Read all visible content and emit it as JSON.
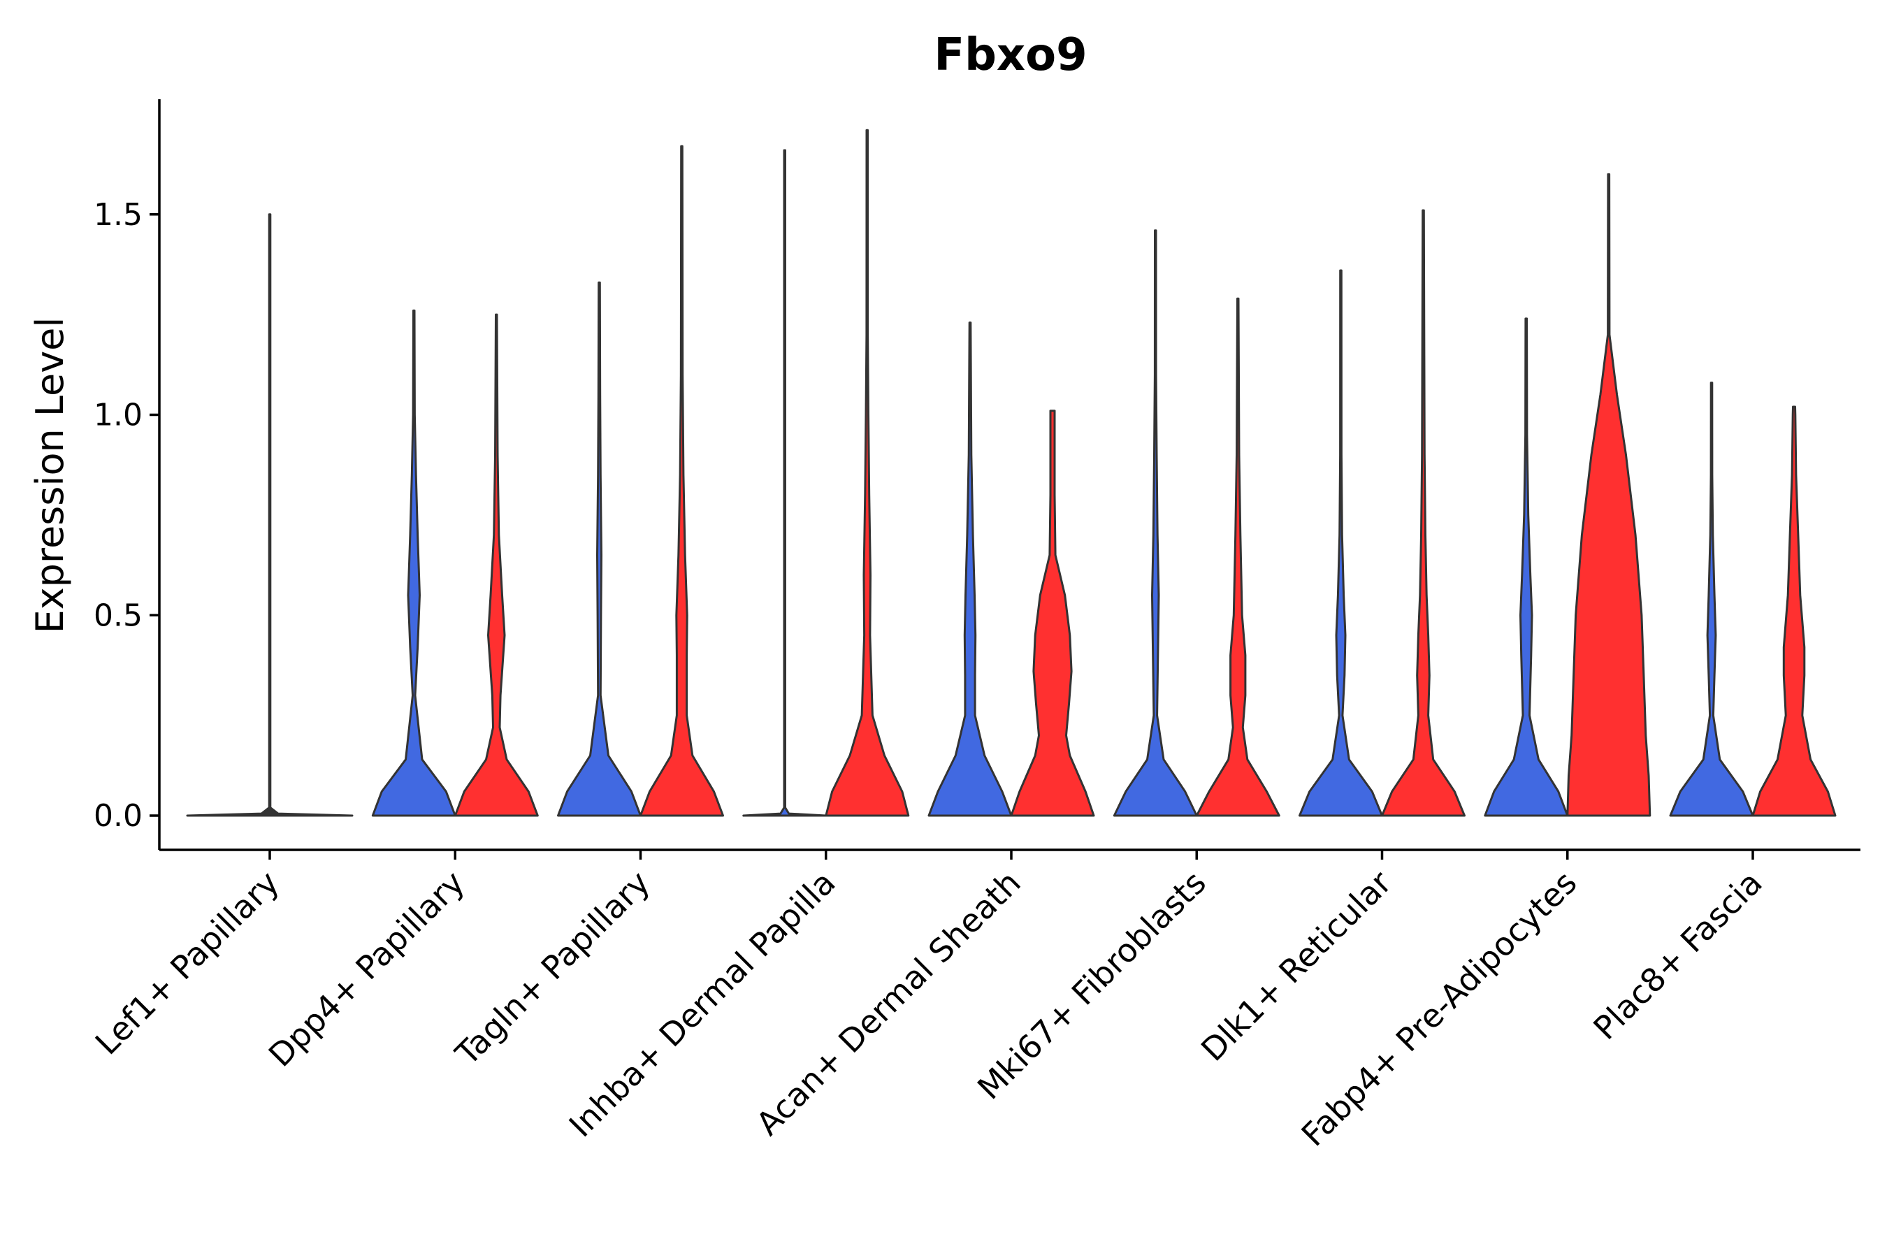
{
  "colors": {
    "blue": "#4169e1",
    "red": "#ff3030",
    "outline": "#333333",
    "axis": "#000000"
  },
  "chart_data": {
    "type": "violin",
    "title": "Fbxo9",
    "xlabel": "",
    "ylabel": "Expression Level",
    "ylim": [
      -0.08,
      1.8
    ],
    "yticks": [
      0.0,
      0.5,
      1.0,
      1.5
    ],
    "ytick_labels": [
      "0.0",
      "0.5",
      "1.0",
      "1.5"
    ],
    "grid": false,
    "split_by": [
      "blue group",
      "red group"
    ],
    "categories": [
      "Lef1+ Papillary",
      "Dpp4+ Papillary",
      "Tagln+ Papillary",
      "Inhba+ Dermal Papilla",
      "Acan+ Dermal Sheath",
      "Mki67+ Fibroblasts",
      "Dlk1+ Reticular",
      "Fabp4+ Pre-Adipocytes",
      "Plac8+ Fascia"
    ],
    "violins": [
      {
        "category": "Lef1+ Papillary",
        "group": "single",
        "color": "gray",
        "max": 1.5,
        "profile": [
          [
            0,
            1.0
          ],
          [
            0.005,
            0.1
          ],
          [
            0.02,
            0.006
          ],
          [
            1.5,
            0.006
          ]
        ]
      },
      {
        "category": "Dpp4+ Papillary",
        "group": "blue",
        "max": 1.26,
        "profile": [
          [
            0,
            1.0
          ],
          [
            0.06,
            0.78
          ],
          [
            0.14,
            0.2
          ],
          [
            0.3,
            0.03
          ],
          [
            0.42,
            0.09
          ],
          [
            0.55,
            0.14
          ],
          [
            0.7,
            0.09
          ],
          [
            0.85,
            0.05
          ],
          [
            1.0,
            0.02
          ],
          [
            1.26,
            0.01
          ]
        ]
      },
      {
        "category": "Dpp4+ Papillary",
        "group": "red",
        "max": 1.25,
        "profile": [
          [
            0,
            1.0
          ],
          [
            0.06,
            0.78
          ],
          [
            0.14,
            0.25
          ],
          [
            0.22,
            0.08
          ],
          [
            0.3,
            0.1
          ],
          [
            0.45,
            0.2
          ],
          [
            0.55,
            0.14
          ],
          [
            0.7,
            0.06
          ],
          [
            0.9,
            0.03
          ],
          [
            1.25,
            0.01
          ]
        ]
      },
      {
        "category": "Tagln+ Papillary",
        "group": "blue",
        "max": 1.33,
        "profile": [
          [
            0,
            1.0
          ],
          [
            0.06,
            0.78
          ],
          [
            0.15,
            0.22
          ],
          [
            0.3,
            0.03
          ],
          [
            0.5,
            0.04
          ],
          [
            0.65,
            0.05
          ],
          [
            0.85,
            0.03
          ],
          [
            1.05,
            0.02
          ],
          [
            1.33,
            0.01
          ]
        ]
      },
      {
        "category": "Tagln+ Papillary",
        "group": "red",
        "max": 1.67,
        "profile": [
          [
            0,
            1.0
          ],
          [
            0.06,
            0.78
          ],
          [
            0.15,
            0.26
          ],
          [
            0.25,
            0.12
          ],
          [
            0.4,
            0.12
          ],
          [
            0.5,
            0.13
          ],
          [
            0.65,
            0.08
          ],
          [
            0.85,
            0.04
          ],
          [
            1.1,
            0.02
          ],
          [
            1.67,
            0.01
          ]
        ]
      },
      {
        "category": "Inhba+ Dermal Papilla",
        "group": "blue",
        "max": 1.66,
        "profile": [
          [
            0,
            1.0
          ],
          [
            0.005,
            0.1
          ],
          [
            0.02,
            0.006
          ],
          [
            1.66,
            0.006
          ]
        ]
      },
      {
        "category": "Inhba+ Dermal Papilla",
        "group": "red",
        "max": 1.71,
        "profile": [
          [
            0,
            1.0
          ],
          [
            0.06,
            0.85
          ],
          [
            0.15,
            0.42
          ],
          [
            0.25,
            0.13
          ],
          [
            0.45,
            0.07
          ],
          [
            0.6,
            0.08
          ],
          [
            0.8,
            0.05
          ],
          [
            1.0,
            0.03
          ],
          [
            1.2,
            0.015
          ],
          [
            1.71,
            0.005
          ]
        ]
      },
      {
        "category": "Acan+ Dermal Sheath",
        "group": "blue",
        "max": 1.23,
        "profile": [
          [
            0,
            1.0
          ],
          [
            0.06,
            0.78
          ],
          [
            0.15,
            0.35
          ],
          [
            0.25,
            0.12
          ],
          [
            0.35,
            0.12
          ],
          [
            0.45,
            0.13
          ],
          [
            0.55,
            0.11
          ],
          [
            0.7,
            0.07
          ],
          [
            0.9,
            0.03
          ],
          [
            1.23,
            0.01
          ]
        ]
      },
      {
        "category": "Acan+ Dermal Sheath",
        "group": "red",
        "max": 1.01,
        "profile": [
          [
            0,
            1.0
          ],
          [
            0.06,
            0.8
          ],
          [
            0.15,
            0.42
          ],
          [
            0.2,
            0.33
          ],
          [
            0.28,
            0.4
          ],
          [
            0.36,
            0.46
          ],
          [
            0.45,
            0.42
          ],
          [
            0.55,
            0.3
          ],
          [
            0.65,
            0.07
          ],
          [
            0.8,
            0.05
          ],
          [
            1.01,
            0.05
          ]
        ]
      },
      {
        "category": "Mki67+ Fibroblasts",
        "group": "blue",
        "max": 1.46,
        "profile": [
          [
            0,
            1.0
          ],
          [
            0.06,
            0.72
          ],
          [
            0.14,
            0.2
          ],
          [
            0.25,
            0.04
          ],
          [
            0.4,
            0.06
          ],
          [
            0.55,
            0.08
          ],
          [
            0.7,
            0.05
          ],
          [
            0.9,
            0.03
          ],
          [
            1.1,
            0.015
          ],
          [
            1.46,
            0.005
          ]
        ]
      },
      {
        "category": "Mki67+ Fibroblasts",
        "group": "red",
        "max": 1.29,
        "profile": [
          [
            0,
            1.0
          ],
          [
            0.06,
            0.7
          ],
          [
            0.14,
            0.23
          ],
          [
            0.22,
            0.12
          ],
          [
            0.3,
            0.18
          ],
          [
            0.4,
            0.18
          ],
          [
            0.5,
            0.1
          ],
          [
            0.7,
            0.06
          ],
          [
            0.9,
            0.03
          ],
          [
            1.29,
            0.005
          ]
        ]
      },
      {
        "category": "Dlk1+ Reticular",
        "group": "blue",
        "max": 1.36,
        "profile": [
          [
            0,
            1.0
          ],
          [
            0.06,
            0.76
          ],
          [
            0.14,
            0.2
          ],
          [
            0.25,
            0.04
          ],
          [
            0.35,
            0.09
          ],
          [
            0.45,
            0.11
          ],
          [
            0.55,
            0.07
          ],
          [
            0.7,
            0.03
          ],
          [
            0.9,
            0.015
          ],
          [
            1.36,
            0.005
          ]
        ]
      },
      {
        "category": "Dlk1+ Reticular",
        "group": "red",
        "max": 1.51,
        "profile": [
          [
            0,
            1.0
          ],
          [
            0.06,
            0.76
          ],
          [
            0.14,
            0.24
          ],
          [
            0.25,
            0.12
          ],
          [
            0.35,
            0.15
          ],
          [
            0.45,
            0.12
          ],
          [
            0.55,
            0.08
          ],
          [
            0.7,
            0.05
          ],
          [
            0.9,
            0.03
          ],
          [
            1.51,
            0.005
          ]
        ]
      },
      {
        "category": "Fabp4+ Pre-Adipocytes",
        "group": "blue",
        "max": 1.24,
        "profile": [
          [
            0,
            1.0
          ],
          [
            0.06,
            0.78
          ],
          [
            0.14,
            0.3
          ],
          [
            0.25,
            0.08
          ],
          [
            0.4,
            0.12
          ],
          [
            0.5,
            0.14
          ],
          [
            0.6,
            0.1
          ],
          [
            0.75,
            0.05
          ],
          [
            0.95,
            0.02
          ],
          [
            1.24,
            0.005
          ]
        ]
      },
      {
        "category": "Fabp4+ Pre-Adipocytes",
        "group": "red",
        "max": 1.6,
        "profile": [
          [
            0,
            1.0
          ],
          [
            0.1,
            0.97
          ],
          [
            0.2,
            0.9
          ],
          [
            0.35,
            0.85
          ],
          [
            0.5,
            0.8
          ],
          [
            0.7,
            0.65
          ],
          [
            0.9,
            0.42
          ],
          [
            1.05,
            0.2
          ],
          [
            1.2,
            0.02
          ],
          [
            1.6,
            0.01
          ]
        ]
      },
      {
        "category": "Plac8+ Fascia",
        "group": "blue",
        "max": 1.08,
        "profile": [
          [
            0,
            1.0
          ],
          [
            0.06,
            0.76
          ],
          [
            0.14,
            0.2
          ],
          [
            0.25,
            0.04
          ],
          [
            0.35,
            0.07
          ],
          [
            0.45,
            0.1
          ],
          [
            0.55,
            0.07
          ],
          [
            0.7,
            0.03
          ],
          [
            0.85,
            0.015
          ],
          [
            1.08,
            0.005
          ]
        ]
      },
      {
        "category": "Plac8+ Fascia",
        "group": "red",
        "max": 1.02,
        "profile": [
          [
            0,
            1.0
          ],
          [
            0.06,
            0.82
          ],
          [
            0.14,
            0.4
          ],
          [
            0.25,
            0.2
          ],
          [
            0.35,
            0.25
          ],
          [
            0.42,
            0.25
          ],
          [
            0.55,
            0.15
          ],
          [
            0.7,
            0.1
          ],
          [
            0.85,
            0.05
          ],
          [
            1.0,
            0.03
          ],
          [
            1.02,
            0.025
          ]
        ]
      }
    ]
  }
}
